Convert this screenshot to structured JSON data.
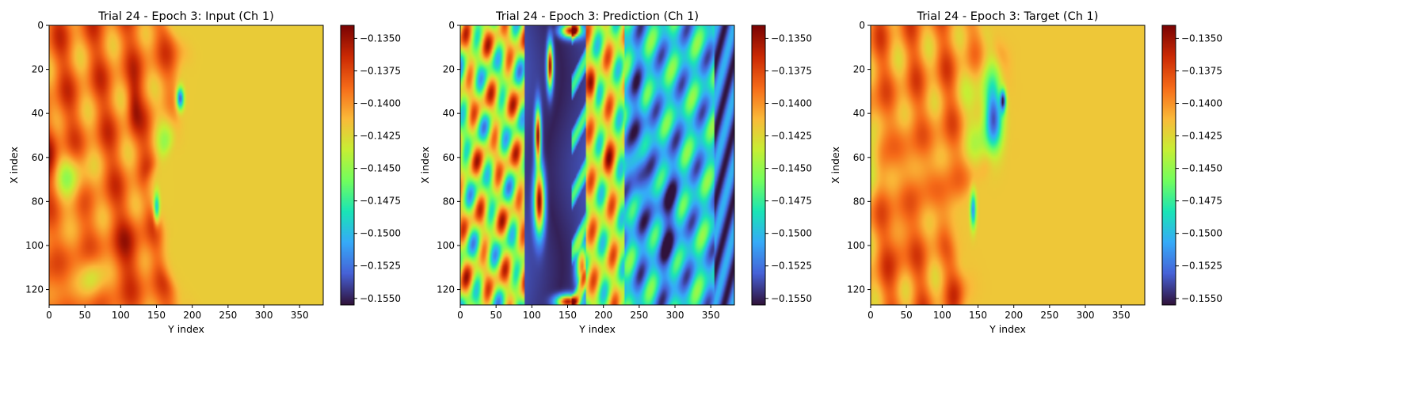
{
  "figure": {
    "background": "#ffffff"
  },
  "colormap": {
    "name": "turbo",
    "stops": [
      "#30123b",
      "#4662d7",
      "#36aaf9",
      "#1ae4b6",
      "#72fe5e",
      "#c7ef34",
      "#faba39",
      "#f66b19",
      "#cb2a04",
      "#7a0403"
    ]
  },
  "chart_data": [
    {
      "type": "heatmap",
      "title": "Trial 24 - Epoch 3: Input (Ch 1)",
      "xlabel": "Y index",
      "ylabel": "X index",
      "xlim": [
        0,
        383
      ],
      "ylim": [
        127,
        0
      ],
      "xticks": [
        0,
        50,
        100,
        150,
        200,
        250,
        300,
        350
      ],
      "yticks": [
        0,
        20,
        40,
        60,
        80,
        100,
        120
      ],
      "grid": false,
      "field": "input",
      "colorbar": {
        "vmin": -0.1555,
        "vmax": -0.134,
        "ticks": [
          -0.135,
          -0.1375,
          -0.14,
          -0.1425,
          -0.145,
          -0.1475,
          -0.15,
          -0.1525,
          -0.155
        ],
        "tick_labels": [
          "−0.1350",
          "−0.1375",
          "−0.1400",
          "−0.1425",
          "−0.1450",
          "−0.1475",
          "−0.1500",
          "−0.1525",
          "−0.1550"
        ]
      }
    },
    {
      "type": "heatmap",
      "title": "Trial 24 - Epoch 3: Prediction (Ch 1)",
      "xlabel": "Y index",
      "ylabel": "X index",
      "xlim": [
        0,
        383
      ],
      "ylim": [
        127,
        0
      ],
      "xticks": [
        0,
        50,
        100,
        150,
        200,
        250,
        300,
        350
      ],
      "yticks": [
        0,
        20,
        40,
        60,
        80,
        100,
        120
      ],
      "grid": false,
      "field": "prediction",
      "colorbar": {
        "vmin": -0.1555,
        "vmax": -0.134,
        "ticks": [
          -0.135,
          -0.1375,
          -0.14,
          -0.1425,
          -0.145,
          -0.1475,
          -0.15,
          -0.1525,
          -0.155
        ],
        "tick_labels": [
          "−0.1350",
          "−0.1375",
          "−0.1400",
          "−0.1425",
          "−0.1450",
          "−0.1475",
          "−0.1500",
          "−0.1525",
          "−0.1550"
        ]
      }
    },
    {
      "type": "heatmap",
      "title": "Trial 24 - Epoch 3: Target (Ch 1)",
      "xlabel": "Y index",
      "ylabel": "X index",
      "xlim": [
        0,
        383
      ],
      "ylim": [
        127,
        0
      ],
      "xticks": [
        0,
        50,
        100,
        150,
        200,
        250,
        300,
        350
      ],
      "yticks": [
        0,
        20,
        40,
        60,
        80,
        100,
        120
      ],
      "grid": false,
      "field": "target",
      "colorbar": {
        "vmin": -0.1555,
        "vmax": -0.134,
        "ticks": [
          -0.135,
          -0.1375,
          -0.14,
          -0.1425,
          -0.145,
          -0.1475,
          -0.15,
          -0.1525,
          -0.155
        ],
        "tick_labels": [
          "−0.1350",
          "−0.1375",
          "−0.1400",
          "−0.1425",
          "−0.1450",
          "−0.1475",
          "−0.1500",
          "−0.1525",
          "−0.1550"
        ]
      }
    }
  ]
}
